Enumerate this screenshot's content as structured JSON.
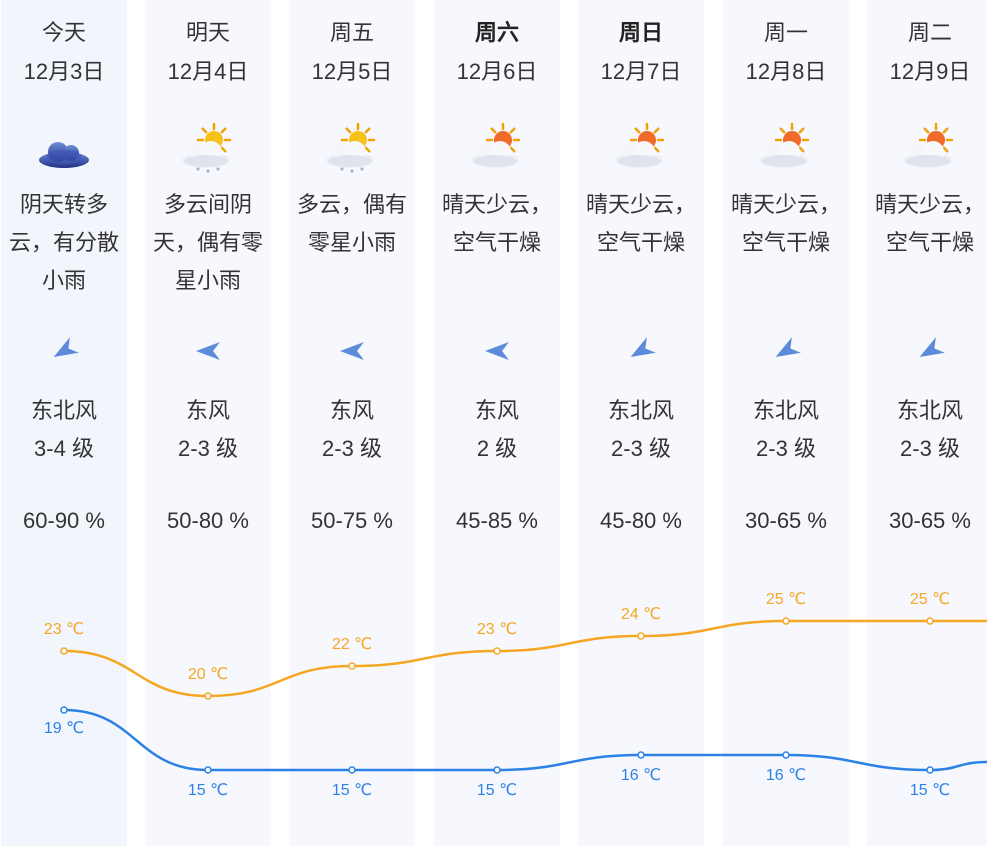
{
  "days": [
    {
      "day": "今天",
      "date": "12月3日",
      "bold": false,
      "weather": "cloudy",
      "desc": [
        "阴天转多",
        "云，有分散",
        "小雨"
      ],
      "wind_icon": "wind-northeast-icon",
      "wind_dir": "东北风",
      "wind_level": "3-4 级",
      "humidity": "60-90 %",
      "high": "23 ℃",
      "low": "19 ℃"
    },
    {
      "day": "明天",
      "date": "12月4日",
      "bold": false,
      "weather": "cloudy-sun-rain",
      "desc": [
        "多云间阴",
        "天，偶有零",
        "星小雨"
      ],
      "wind_icon": "wind-east-icon",
      "wind_dir": "东风",
      "wind_level": "2-3 级",
      "humidity": "50-80 %",
      "high": "20 ℃",
      "low": "15 ℃"
    },
    {
      "day": "周五",
      "date": "12月5日",
      "bold": false,
      "weather": "cloudy-sun-rain",
      "desc": [
        "多云，偶有",
        "零星小雨"
      ],
      "wind_icon": "wind-east-icon",
      "wind_dir": "东风",
      "wind_level": "2-3 级",
      "humidity": "50-75 %",
      "high": "22 ℃",
      "low": "15 ℃"
    },
    {
      "day": "周六",
      "date": "12月6日",
      "bold": true,
      "weather": "sunny-cloud",
      "desc": [
        "晴天少云，",
        "空气干燥"
      ],
      "wind_icon": "wind-east-icon",
      "wind_dir": "东风",
      "wind_level": "2 级",
      "humidity": "45-85 %",
      "high": "23 ℃",
      "low": "15 ℃"
    },
    {
      "day": "周日",
      "date": "12月7日",
      "bold": true,
      "weather": "sunny-cloud",
      "desc": [
        "晴天少云，",
        "空气干燥"
      ],
      "wind_icon": "wind-northeast-icon",
      "wind_dir": "东北风",
      "wind_level": "2-3 级",
      "humidity": "45-80 %",
      "high": "24 ℃",
      "low": "16 ℃"
    },
    {
      "day": "周一",
      "date": "12月8日",
      "bold": false,
      "weather": "sunny-cloud",
      "desc": [
        "晴天少云，",
        "空气干燥"
      ],
      "wind_icon": "wind-northeast-icon",
      "wind_dir": "东北风",
      "wind_level": "2-3 级",
      "humidity": "30-65 %",
      "high": "25 ℃",
      "low": "16 ℃"
    },
    {
      "day": "周二",
      "date": "12月9日",
      "bold": false,
      "weather": "sunny-cloud",
      "desc": [
        "晴天少云，",
        "空气干燥"
      ],
      "wind_icon": "wind-northeast-icon",
      "wind_dir": "东北风",
      "wind_level": "2-3 级",
      "humidity": "30-65 %",
      "high": "25 ℃",
      "low": "15 ℃"
    }
  ],
  "temps": {
    "high": [
      23,
      20,
      22,
      23,
      24,
      25,
      25
    ],
    "low": [
      19,
      15,
      15,
      15,
      16,
      16,
      15
    ]
  },
  "colors": {
    "high_line": "#f5a623",
    "low_line": "#2b82e4",
    "text": "#333333",
    "column_bg": "#f6f8fd"
  }
}
